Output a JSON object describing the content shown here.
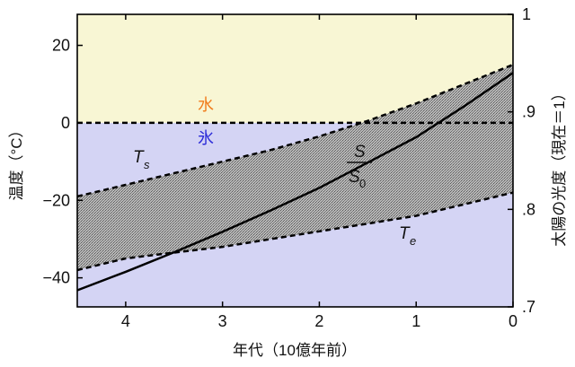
{
  "chart_data": {
    "type": "line",
    "x_label": "年代（10億年前）",
    "x_ticks": [
      4,
      3,
      2,
      1,
      0
    ],
    "x_range": [
      4.5,
      0
    ],
    "y_left_label": "温度（°C）",
    "y_left_ticks": [
      "20",
      "0",
      "−20",
      "−40"
    ],
    "y_left_tick_values": [
      20,
      0,
      -20,
      -40
    ],
    "y_left_range": [
      -47.5,
      28
    ],
    "y_right_label": "太陽の光度（現在＝1）",
    "y_right_ticks": [
      "1",
      ".9",
      ".8",
      ".7"
    ],
    "y_right_tick_values": [
      1.0,
      0.9,
      0.8,
      0.7
    ],
    "y_right_range": [
      0.7,
      1.0
    ],
    "regions": [
      {
        "label": "水",
        "from": 0,
        "to": 28,
        "color": "#f8f6d4",
        "label_color": "#f07c1c"
      },
      {
        "label": "氷",
        "from": -47.5,
        "to": 0,
        "color": "#d4d4f4",
        "label_color": "#2a2ad8"
      }
    ],
    "series": [
      {
        "name": "T",
        "name_subscript": "s",
        "style": "dashed",
        "x": [
          4.5,
          4.0,
          3.5,
          3.0,
          2.5,
          2.0,
          1.5,
          1.0,
          0.5,
          0.0
        ],
        "y": [
          -19.0,
          -16.0,
          -13.0,
          -10.0,
          -7.0,
          -3.5,
          0.5,
          5.0,
          10.0,
          15.0
        ]
      },
      {
        "name": "T",
        "name_subscript": "e",
        "style": "dashed",
        "x": [
          4.5,
          4.0,
          3.5,
          3.0,
          2.5,
          2.0,
          1.5,
          1.0,
          0.5,
          0.0
        ],
        "y": [
          -38.0,
          -35.0,
          -33.5,
          -32.0,
          -30.0,
          -28.0,
          -26.0,
          -24.0,
          -21.0,
          -18.0
        ]
      },
      {
        "name": "S/S0",
        "style": "solid",
        "axis": "right",
        "x": [
          4.5,
          4.0,
          3.5,
          3.0,
          2.5,
          2.0,
          1.5,
          1.0,
          0.5,
          0.0
        ],
        "y": [
          0.717,
          0.736,
          0.756,
          0.777,
          0.799,
          0.822,
          0.848,
          0.874,
          0.906,
          0.94
        ]
      }
    ],
    "zero_line": {
      "y": 0,
      "style": "dashed"
    },
    "shaded_band": {
      "between": [
        "T_s",
        "T_e"
      ],
      "color": "#9a9a9a"
    },
    "annotations": {
      "water": "水",
      "ice": "氷",
      "ts_main": "T",
      "ts_sub": "s",
      "te_main": "T",
      "te_sub": "e",
      "ratio_num": "S",
      "ratio_den_main": "S",
      "ratio_den_sub": "0"
    },
    "grid": false,
    "legend": "none"
  }
}
